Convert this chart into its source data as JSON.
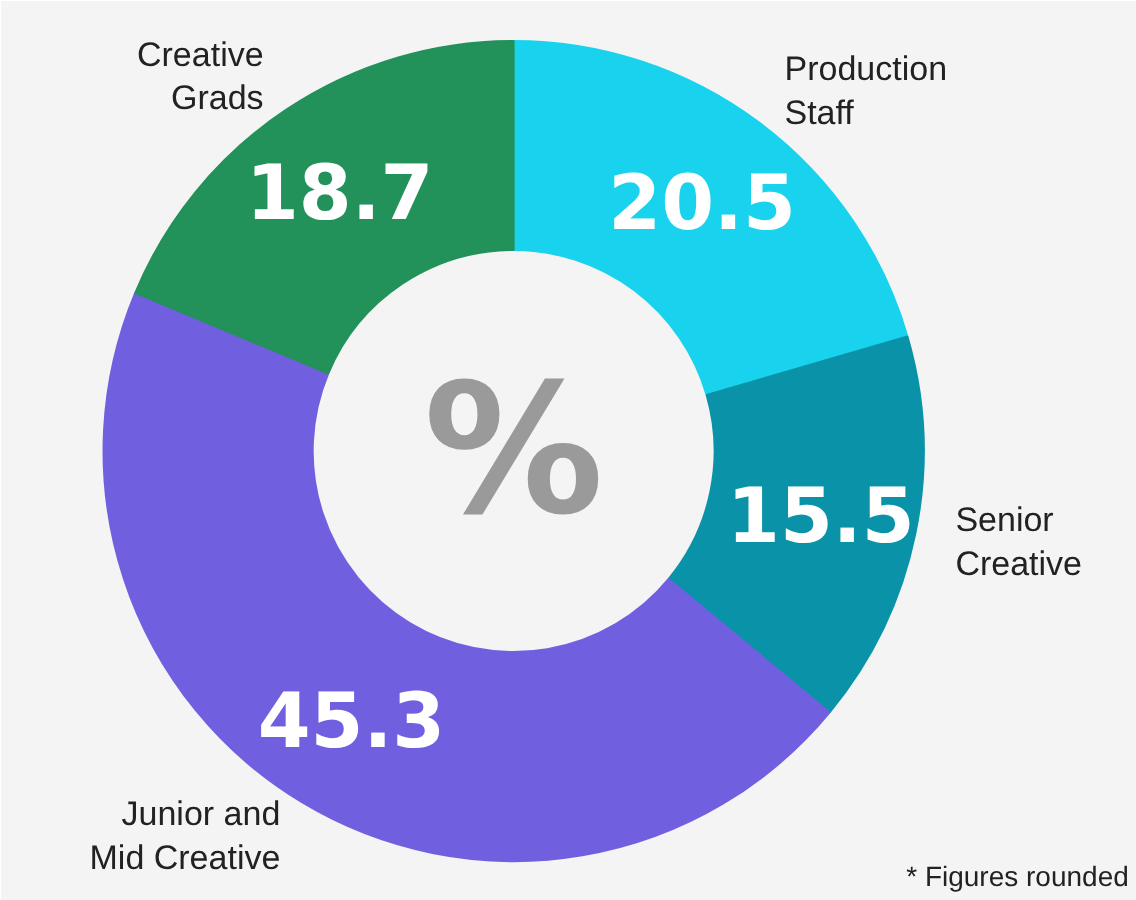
{
  "chart_data": {
    "type": "donut",
    "categories": [
      "Production\nStaff",
      "Senior\nCreative",
      "Junior and\nMid Creative",
      "Creative\nGrads"
    ],
    "values": [
      20.5,
      15.5,
      45.3,
      18.7
    ],
    "colors": [
      "#19d3ee",
      "#0a93a8",
      "#7060e0",
      "#23915a"
    ],
    "data_labels": true,
    "annotations": [
      "%",
      "* Figures rounded"
    ]
  }
}
